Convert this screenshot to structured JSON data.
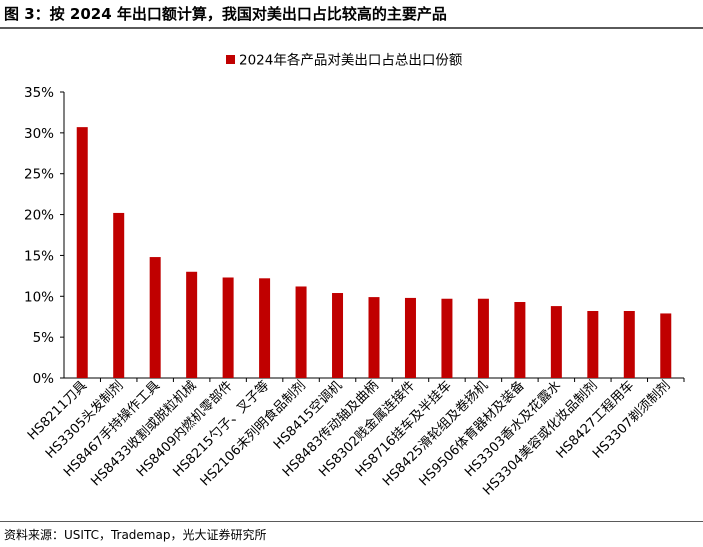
{
  "figure_title": "图 3：按 2024 年出口额计算，我国对美出口占比较高的主要产品",
  "source_note": "资料来源：USITC，Trademap，光大证券研究所",
  "colors": {
    "bar": "#c00000",
    "axis": "#000000",
    "rule": "#5a5a5a"
  },
  "chart_data": {
    "type": "bar",
    "title": "",
    "xlabel": "",
    "ylabel": "",
    "ylim": [
      0,
      35
    ],
    "yticks": [
      "0%",
      "5%",
      "10%",
      "15%",
      "20%",
      "25%",
      "30%",
      "35%"
    ],
    "grid": false,
    "legend_position": "top-center",
    "categories": [
      "HS8211刀具",
      "HS3305头发制剂",
      "HS8467手持操作工具",
      "HS8433收割或脱粒机械",
      "HS8409内燃机零部件",
      "HS8215勺子、叉子等",
      "HS2106未列明食品制剂",
      "HS8415空调机",
      "HS8483传动轴及曲柄",
      "HS8302贱金属连接件",
      "HS8716挂车及半挂车",
      "HS8425滑轮组及卷扬机",
      "HS9506体育器材及装备",
      "HS3303香水及花露水",
      "HS3304美容或化妆品制剂",
      "HS8427工程用车",
      "HS3307剃须制剂"
    ],
    "series": [
      {
        "name": "2024年各产品对美出口占总出口份额",
        "values": [
          30.7,
          20.2,
          14.8,
          13.0,
          12.3,
          12.2,
          11.2,
          10.4,
          9.9,
          9.8,
          9.7,
          9.7,
          9.3,
          8.8,
          8.2,
          8.2,
          7.9
        ]
      }
    ]
  }
}
